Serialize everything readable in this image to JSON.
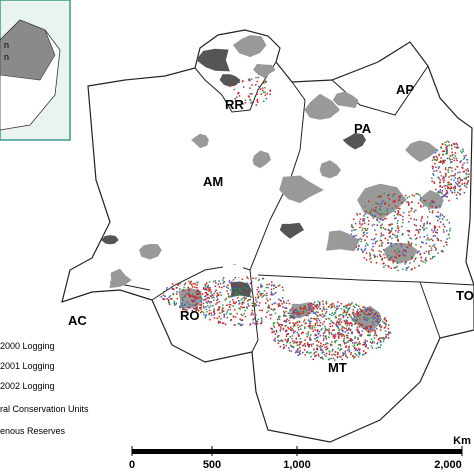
{
  "inset": {
    "labels": [
      "n",
      "n"
    ]
  },
  "states": [
    "AM",
    "RR",
    "AP",
    "PA",
    "AC",
    "RO",
    "MT",
    "TO"
  ],
  "legend": [
    "2000 Logging",
    "2001 Logging",
    "2002 Logging",
    "ral Conservation Units",
    "enous Reserves"
  ],
  "scale": {
    "unit": "Km",
    "labels": [
      "0",
      "500",
      "1,000",
      "2,000"
    ]
  }
}
